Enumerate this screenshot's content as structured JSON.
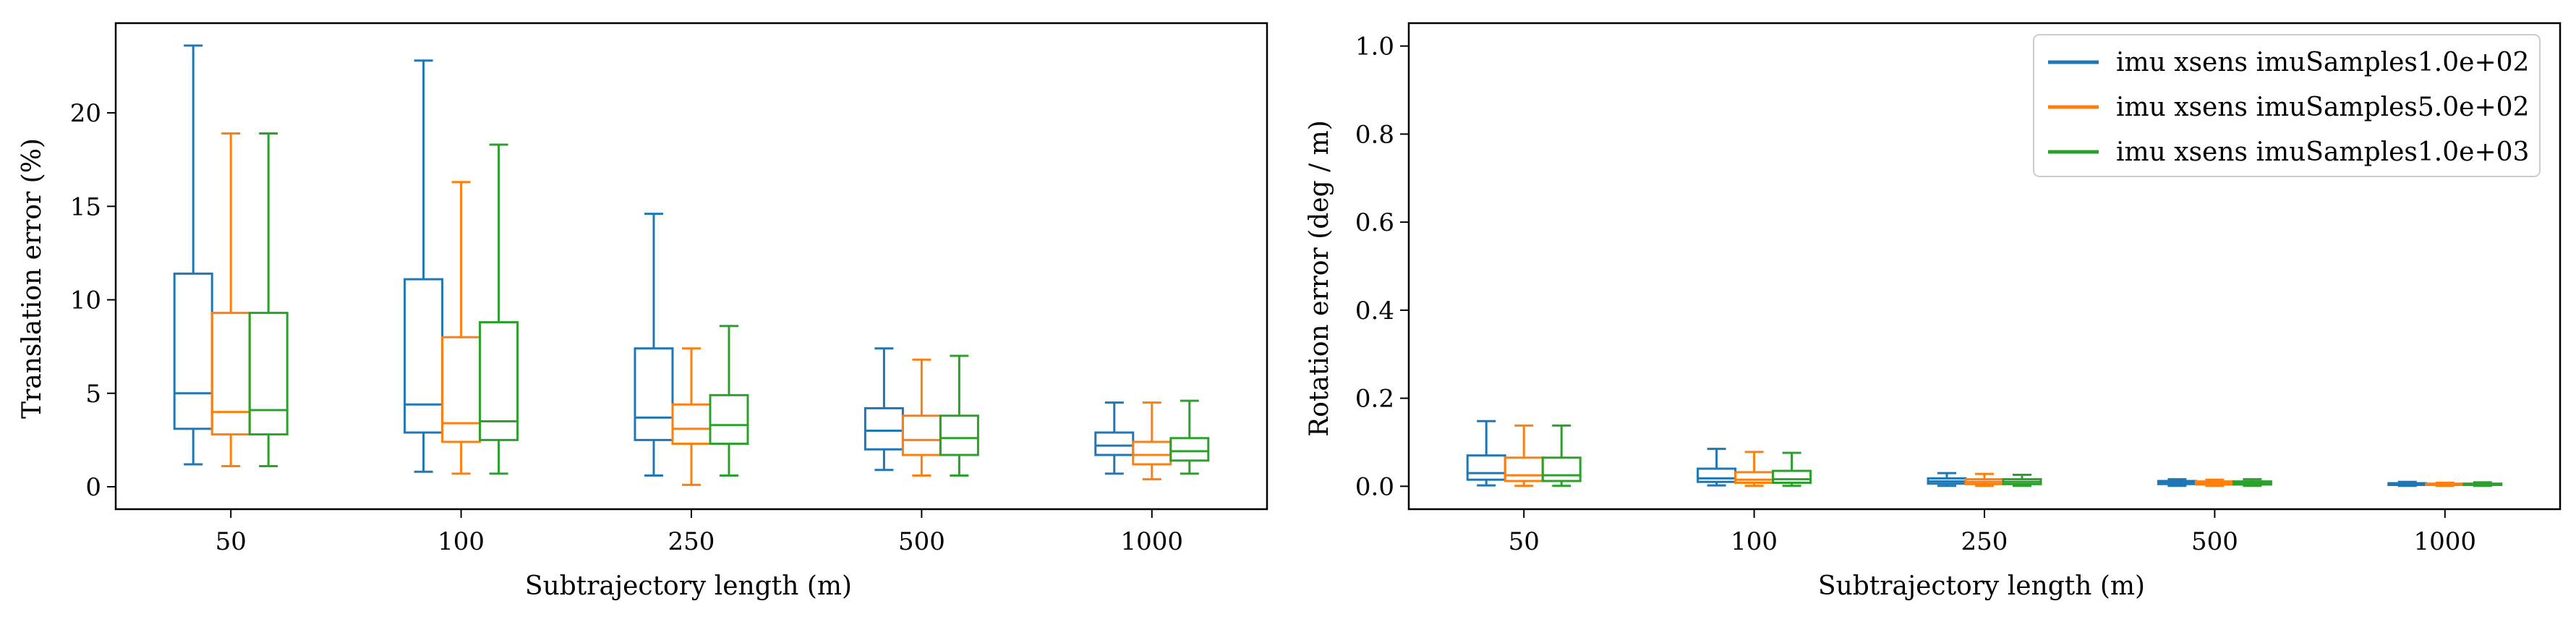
{
  "chart_data": [
    {
      "type": "box",
      "xlabel": "Subtrajectory length (m)",
      "ylabel": "Translation error (%)",
      "ylim": [
        -1.2,
        24.8
      ],
      "yticks": [
        0,
        5,
        10,
        15,
        20
      ],
      "categories": [
        "50",
        "100",
        "250",
        "500",
        "1000"
      ],
      "grid": false,
      "series": [
        {
          "name": "imu xsens imuSamples1.0e+02",
          "color": "#1f77b4",
          "boxes": [
            {
              "whislo": 1.2,
              "q1": 3.1,
              "med": 5.0,
              "q3": 11.4,
              "whishi": 23.6
            },
            {
              "whislo": 0.8,
              "q1": 2.9,
              "med": 4.4,
              "q3": 11.1,
              "whishi": 22.8
            },
            {
              "whislo": 0.6,
              "q1": 2.5,
              "med": 3.7,
              "q3": 7.4,
              "whishi": 14.6
            },
            {
              "whislo": 0.9,
              "q1": 2.0,
              "med": 3.0,
              "q3": 4.2,
              "whishi": 7.4
            },
            {
              "whislo": 0.7,
              "q1": 1.7,
              "med": 2.2,
              "q3": 2.9,
              "whishi": 4.5
            }
          ]
        },
        {
          "name": "imu xsens imuSamples5.0e+02",
          "color": "#ff7f0e",
          "boxes": [
            {
              "whislo": 1.1,
              "q1": 2.8,
              "med": 4.0,
              "q3": 9.3,
              "whishi": 18.9
            },
            {
              "whislo": 0.7,
              "q1": 2.4,
              "med": 3.4,
              "q3": 8.0,
              "whishi": 16.3
            },
            {
              "whislo": 0.1,
              "q1": 2.3,
              "med": 3.1,
              "q3": 4.4,
              "whishi": 7.4
            },
            {
              "whislo": 0.6,
              "q1": 1.7,
              "med": 2.5,
              "q3": 3.8,
              "whishi": 6.8
            },
            {
              "whislo": 0.4,
              "q1": 1.2,
              "med": 1.7,
              "q3": 2.4,
              "whishi": 4.5
            }
          ]
        },
        {
          "name": "imu xsens imuSamples1.0e+03",
          "color": "#2ca02c",
          "boxes": [
            {
              "whislo": 1.1,
              "q1": 2.8,
              "med": 4.1,
              "q3": 9.3,
              "whishi": 18.9
            },
            {
              "whislo": 0.7,
              "q1": 2.5,
              "med": 3.5,
              "q3": 8.8,
              "whishi": 18.3
            },
            {
              "whislo": 0.6,
              "q1": 2.3,
              "med": 3.3,
              "q3": 4.9,
              "whishi": 8.6
            },
            {
              "whislo": 0.6,
              "q1": 1.7,
              "med": 2.6,
              "q3": 3.8,
              "whishi": 7.0
            },
            {
              "whislo": 0.7,
              "q1": 1.4,
              "med": 1.9,
              "q3": 2.6,
              "whishi": 4.6
            }
          ]
        }
      ]
    },
    {
      "type": "box",
      "xlabel": "Subtrajectory length (m)",
      "ylabel": "Rotation error (deg / m)",
      "ylim": [
        -0.052,
        1.052
      ],
      "yticks": [
        0.0,
        0.2,
        0.4,
        0.6,
        0.8,
        1.0
      ],
      "ytick_labels": [
        "0.0",
        "0.2",
        "0.4",
        "0.6",
        "0.8",
        "1.0"
      ],
      "categories": [
        "50",
        "100",
        "250",
        "500",
        "1000"
      ],
      "grid": false,
      "legend": "upper-right",
      "series": [
        {
          "name": "imu xsens imuSamples1.0e+02",
          "color": "#1f77b4",
          "boxes": [
            {
              "whislo": 0.002,
              "q1": 0.015,
              "med": 0.03,
              "q3": 0.07,
              "whishi": 0.148
            },
            {
              "whislo": 0.002,
              "q1": 0.01,
              "med": 0.018,
              "q3": 0.04,
              "whishi": 0.085
            },
            {
              "whislo": 0.001,
              "q1": 0.006,
              "med": 0.011,
              "q3": 0.018,
              "whishi": 0.03
            },
            {
              "whislo": 0.001,
              "q1": 0.005,
              "med": 0.008,
              "q3": 0.012,
              "whishi": 0.016
            },
            {
              "whislo": 0.001,
              "q1": 0.003,
              "med": 0.005,
              "q3": 0.007,
              "whishi": 0.01
            }
          ]
        },
        {
          "name": "imu xsens imuSamples5.0e+02",
          "color": "#ff7f0e",
          "boxes": [
            {
              "whislo": 0.001,
              "q1": 0.012,
              "med": 0.025,
              "q3": 0.065,
              "whishi": 0.138
            },
            {
              "whislo": 0.001,
              "q1": 0.008,
              "med": 0.015,
              "q3": 0.032,
              "whishi": 0.078
            },
            {
              "whislo": 0.001,
              "q1": 0.005,
              "med": 0.01,
              "q3": 0.016,
              "whishi": 0.028
            },
            {
              "whislo": 0.001,
              "q1": 0.004,
              "med": 0.007,
              "q3": 0.011,
              "whishi": 0.015
            },
            {
              "whislo": 0.001,
              "q1": 0.003,
              "med": 0.004,
              "q3": 0.006,
              "whishi": 0.008
            }
          ]
        },
        {
          "name": "imu xsens imuSamples1.0e+03",
          "color": "#2ca02c",
          "boxes": [
            {
              "whislo": 0.001,
              "q1": 0.012,
              "med": 0.025,
              "q3": 0.065,
              "whishi": 0.138
            },
            {
              "whislo": 0.001,
              "q1": 0.008,
              "med": 0.016,
              "q3": 0.035,
              "whishi": 0.076
            },
            {
              "whislo": 0.001,
              "q1": 0.005,
              "med": 0.01,
              "q3": 0.016,
              "whishi": 0.026
            },
            {
              "whislo": 0.001,
              "q1": 0.004,
              "med": 0.007,
              "q3": 0.011,
              "whishi": 0.016
            },
            {
              "whislo": 0.001,
              "q1": 0.003,
              "med": 0.004,
              "q3": 0.006,
              "whishi": 0.009
            }
          ]
        }
      ]
    }
  ]
}
